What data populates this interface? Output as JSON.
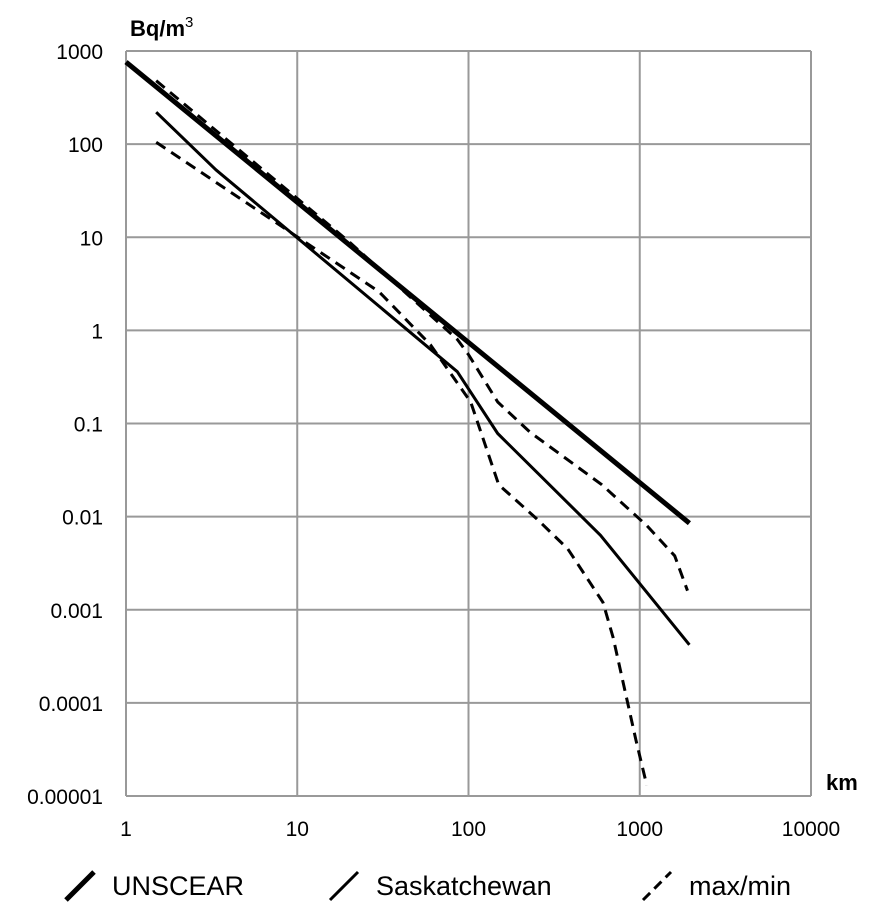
{
  "chart_data": {
    "type": "line",
    "title": "",
    "xlabel": "km",
    "ylabel": "Bq/m3",
    "xscale": "log",
    "yscale": "log",
    "xlim": [
      1,
      10000
    ],
    "ylim": [
      1e-05,
      1000
    ],
    "grid": true,
    "legend_position": "bottom",
    "x_ticks": [
      "1",
      "10",
      "100",
      "1000",
      "10000"
    ],
    "y_ticks": [
      "1000",
      "100",
      "10",
      "1",
      "0.1",
      "0.01",
      "0.001",
      "0.0001",
      "0.00001"
    ],
    "series": [
      {
        "name": "UNSCEAR",
        "style": "thick-solid",
        "x": [
          1,
          1950
        ],
        "y": [
          760,
          0.0085
        ]
      },
      {
        "name": "Saskatchewan",
        "style": "solid",
        "x": [
          1.5,
          3.35,
          86,
          148,
          590,
          1950
        ],
        "y": [
          220,
          53,
          0.36,
          0.078,
          0.0063,
          0.00042
        ]
      },
      {
        "name": "max/min (max)",
        "style": "dashed",
        "x": [
          1.5,
          20,
          86,
          100,
          148,
          230,
          600,
          1100,
          1600,
          1900
        ],
        "y": [
          480,
          9,
          0.8,
          0.55,
          0.17,
          0.08,
          0.022,
          0.008,
          0.0038,
          0.0016
        ]
      },
      {
        "name": "max/min (min)",
        "style": "dashed",
        "x": [
          1.5,
          30,
          60,
          103,
          150,
          250,
          380,
          610,
          700,
          950,
          1100
        ],
        "y": [
          105,
          2.6,
          0.7,
          0.17,
          0.022,
          0.0095,
          0.0045,
          0.0012,
          0.0005,
          4e-05,
          1.3e-05
        ]
      }
    ]
  },
  "axes": {
    "y_title_base": "Bq/m",
    "y_title_sup": "3",
    "x_title": "km",
    "x_ticks": [
      "1",
      "10",
      "100",
      "1000",
      "10000"
    ],
    "y_ticks": [
      "1000",
      "100",
      "10",
      "1",
      "0.1",
      "0.01",
      "0.001",
      "0.0001",
      "0.00001"
    ]
  },
  "legend": {
    "items": [
      {
        "label": "UNSCEAR",
        "icon": "thick-solid-line-icon"
      },
      {
        "label": "Saskatchewan",
        "icon": "solid-line-icon"
      },
      {
        "label": "max/min",
        "icon": "dashed-line-icon"
      }
    ]
  },
  "colors": {
    "line": "#000000",
    "grid": "#999999",
    "background": "#ffffff"
  }
}
